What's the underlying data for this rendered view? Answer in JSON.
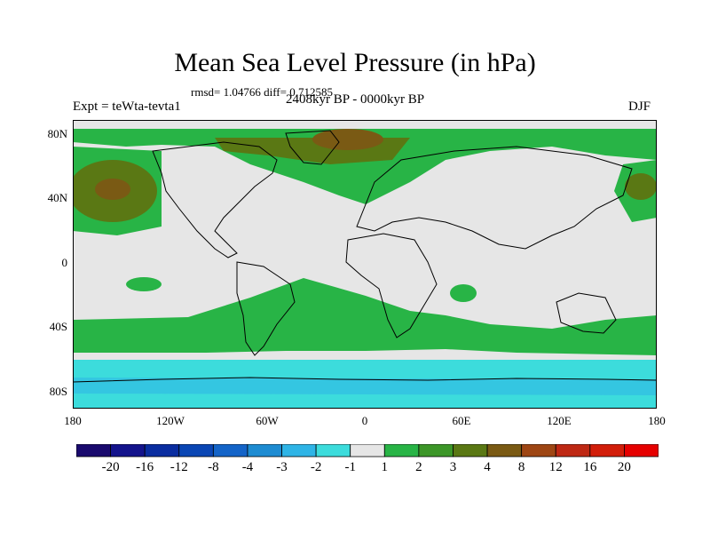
{
  "title": "Mean Sea Level Pressure (in hPa)",
  "stats": "rmsd= 1.04766 diff= 0.712585",
  "experiment": "Expt = teWta-tevta1",
  "period": "2408kyr BP - 0000kyr BP",
  "season": "DJF",
  "lat_labels": [
    "80N",
    "40N",
    "0",
    "40S",
    "80S"
  ],
  "lon_labels": [
    "180",
    "120W",
    "60W",
    "0",
    "60E",
    "120E",
    "180"
  ],
  "colorbar": {
    "colors": [
      "#1a0a6e",
      "#14148c",
      "#0a2da0",
      "#0a46b4",
      "#1464c8",
      "#1e8cd2",
      "#2eb4e6",
      "#3cdcdc",
      "#e6e6e6",
      "#28b446",
      "#3c9628",
      "#5a7814",
      "#7a5a14",
      "#9e4614",
      "#be2814",
      "#d21e0a",
      "#e60000"
    ],
    "labels": [
      "-20",
      "-16",
      "-12",
      "-8",
      "-4",
      "-3",
      "-2",
      "-1",
      "1",
      "2",
      "3",
      "4",
      "8",
      "12",
      "16",
      "20"
    ]
  },
  "palette": {
    "neutral": "#e6e6e6",
    "green": "#28b446",
    "olive": "#5a7814",
    "brown": "#7a5a14",
    "cyan": "#3cdcdc",
    "blue": "#2eb4e6"
  }
}
